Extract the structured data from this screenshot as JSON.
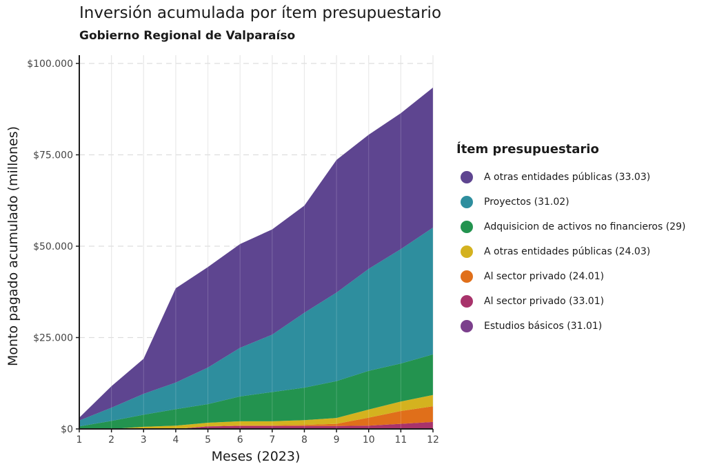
{
  "chart_data": {
    "type": "area",
    "stacked": true,
    "title": "Inversión acumulada por ítem presupuestario",
    "subtitle": "Gobierno Regional de Valparaíso",
    "xlabel": "Meses (2023)",
    "ylabel": "Monto pagado acumulado (millones)",
    "x": [
      1,
      2,
      3,
      4,
      5,
      6,
      7,
      8,
      9,
      10,
      11,
      12
    ],
    "xlim": [
      1,
      12
    ],
    "ylim": [
      0,
      100000
    ],
    "yticks": [
      0,
      25000,
      50000,
      75000,
      100000
    ],
    "ytick_labels": [
      "$0",
      "$25.000",
      "$50.000",
      "$75.000",
      "$100.000"
    ],
    "grid": true,
    "legend_title": "Ítem presupuestario",
    "legend_position": "right",
    "series": [
      {
        "name": "Estudios básicos (31.01)",
        "color": "#7b3f8c",
        "values": [
          0,
          0,
          0,
          0,
          0,
          0,
          0,
          0,
          0,
          0,
          0,
          0
        ]
      },
      {
        "name": "Al sector privado (33.01)",
        "color": "#a8336b",
        "values": [
          0,
          0,
          0,
          0,
          700,
          800,
          800,
          800,
          800,
          900,
          1400,
          1900
        ]
      },
      {
        "name": "Al sector privado (24.01)",
        "color": "#e06f1a",
        "values": [
          0,
          0,
          0,
          0,
          0,
          200,
          200,
          300,
          600,
          2200,
          3500,
          4300
        ]
      },
      {
        "name": "A otras entidades públicas (24.03)",
        "color": "#d4b21f",
        "values": [
          0,
          0,
          600,
          900,
          1000,
          1100,
          1100,
          1300,
          1600,
          2200,
          2600,
          3100
        ]
      },
      {
        "name": "Adquisicion de activos no financieros (29)",
        "color": "#23934f",
        "values": [
          700,
          2200,
          3300,
          4500,
          5100,
          6800,
          8000,
          8900,
          10100,
          10600,
          10400,
          11100
        ]
      },
      {
        "name": "Proyectos (31.02)",
        "color": "#2e8e9e",
        "values": [
          1600,
          3600,
          5700,
          7300,
          10000,
          13300,
          15700,
          20500,
          24200,
          27900,
          31300,
          34700
        ]
      },
      {
        "name": "A otras entidades públicas (33.03)",
        "color": "#5e4590",
        "values": [
          800,
          5900,
          9600,
          25800,
          27500,
          28400,
          28800,
          29300,
          36300,
          36700,
          37200,
          38300
        ]
      }
    ]
  }
}
